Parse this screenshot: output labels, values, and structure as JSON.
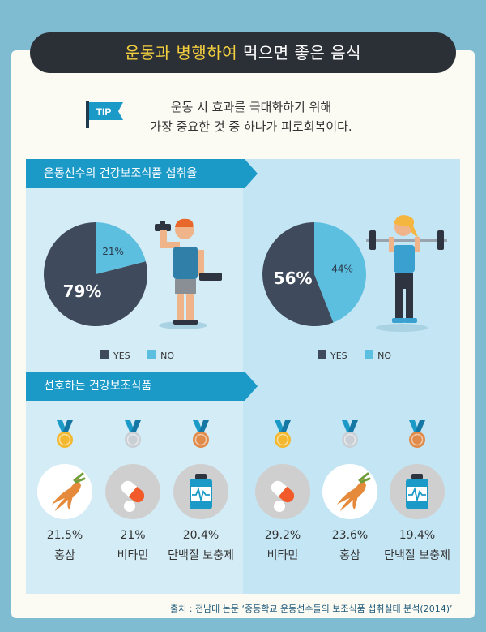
{
  "header": {
    "title_highlight": "운동과 병행하여",
    "title_rest": " 먹으면 좋은 음식"
  },
  "tip": {
    "badge": "TIP",
    "line1": "운동 시 효과를 극대화하기 위해",
    "line2": "가장 중요한 것 중 하나가 피로회복이다."
  },
  "section1_title": "운동선수의 건강보조식품 섭취율",
  "section2_title": "선호하는 건강보조식품",
  "legend": {
    "yes": "YES",
    "no": "NO"
  },
  "colors": {
    "yes": "#3f4b5c",
    "no": "#5cbfe0",
    "gold": "#f3b82f",
    "silver": "#c9cfd4",
    "bronze": "#e08b4a"
  },
  "chart_data": [
    {
      "type": "pie",
      "slices": [
        {
          "label": "YES",
          "value": 79,
          "display": "79%"
        },
        {
          "label": "NO",
          "value": 21,
          "display": "21%"
        }
      ]
    },
    {
      "type": "pie",
      "slices": [
        {
          "label": "YES",
          "value": 56,
          "display": "56%"
        },
        {
          "label": "NO",
          "value": 44,
          "display": "44%"
        }
      ]
    }
  ],
  "preferred": {
    "left": [
      {
        "rank": "gold",
        "icon": "ginseng-icon",
        "value": "21.5%",
        "label": "홍삼"
      },
      {
        "rank": "silver",
        "icon": "pill-icon",
        "value": "21%",
        "label": "비타민"
      },
      {
        "rank": "bronze",
        "icon": "protein-bottle-icon",
        "value": "20.4%",
        "label": "단백질 보충제"
      }
    ],
    "right": [
      {
        "rank": "gold",
        "icon": "pill-icon",
        "value": "29.2%",
        "label": "비타민"
      },
      {
        "rank": "silver",
        "icon": "ginseng-icon",
        "value": "23.6%",
        "label": "홍삼"
      },
      {
        "rank": "bronze",
        "icon": "protein-bottle-icon",
        "value": "19.4%",
        "label": "단백질 보충제"
      }
    ]
  },
  "source": "출처 : 전남대 논문 ‘중등학교 운동선수들의 보조식품 섭취실태 분석(2014)’"
}
